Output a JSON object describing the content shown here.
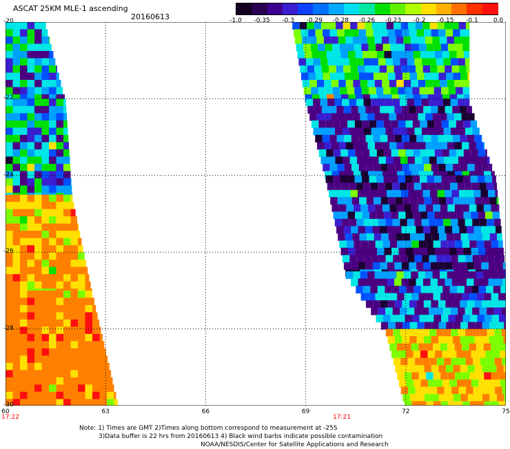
{
  "header": {
    "title": "ASCAT 25KM MLE-1 ascending",
    "date": "20160613"
  },
  "colorbar": {
    "labels": [
      "-1.0",
      "-0.35",
      "-0.3",
      "-0.29",
      "-0.28",
      "-0.26",
      "-0.23",
      "-0.2",
      "-0.15",
      "-0.1",
      "0.0"
    ],
    "colors": [
      "#1a0033",
      "#4b0082",
      "#3a1fd0",
      "#0050ff",
      "#00a0ff",
      "#00e5e5",
      "#00e000",
      "#7cff00",
      "#ffe000",
      "#ff8000",
      "#ff1010"
    ]
  },
  "axes": {
    "x_ticks": [
      "60",
      "63",
      "66",
      "69",
      "72",
      "75"
    ],
    "y_ticks": [
      "-20",
      "-22",
      "-24",
      "-26",
      "-28",
      "-30"
    ],
    "grid": "dotted"
  },
  "pass_times": [
    "17:22",
    "17:21"
  ],
  "notes": {
    "line1": "Note: 1) Times are GMT 2)Times along bottom correspond to measurement at -25S",
    "line2": "3)Data buffer is 22 hrs from 20160613 4) Black wind barbs indicate possible contamination",
    "line3": "NOAA/NESDIS/Center for Satellite Applications and Research"
  },
  "chart_data": {
    "type": "heatmap",
    "variable": "MLE-1",
    "xlim": [
      60,
      75
    ],
    "ylim": [
      -30,
      -20
    ],
    "swaths": [
      {
        "time": "17:22",
        "regions": [
          {
            "lat": [
              -20,
              -22
            ],
            "lon_west": 60.0,
            "lon_east": [
              61.2,
              61.8
            ],
            "dominant_value": -0.26
          },
          {
            "lat": [
              -22,
              -24.5
            ],
            "lon_west": 60.0,
            "lon_east": [
              61.8,
              62.0
            ],
            "dominant_value": -0.26
          },
          {
            "lat": [
              -24.5,
              -27
            ],
            "lon_west": 60.0,
            "lon_east": [
              62.0,
              62.6
            ],
            "dominant_value": -0.1
          },
          {
            "lat": [
              -27,
              -30
            ],
            "lon_west": 60.0,
            "lon_east": [
              62.6,
              63.4
            ],
            "dominant_value": -0.05
          }
        ]
      },
      {
        "time": "17:21",
        "regions": [
          {
            "lat": [
              -20,
              -22
            ],
            "lon_west": [
              68.6,
              69.0
            ],
            "lon_east": 73.9,
            "dominant_value": -0.24
          },
          {
            "lat": [
              -22,
              -24
            ],
            "lon_west": [
              69.0,
              69.6
            ],
            "lon_east": [
              73.9,
              74.7
            ],
            "dominant_value": -0.3
          },
          {
            "lat": [
              -24,
              -26.5
            ],
            "lon_west": [
              69.6,
              70.2
            ],
            "lon_east": [
              74.7,
              75.0
            ],
            "dominant_value": -0.31
          },
          {
            "lat": [
              -26.5,
              -28
            ],
            "lon_west": [
              70.2,
              71.4
            ],
            "lon_east": 75.0,
            "dominant_value": -0.29
          },
          {
            "lat": [
              -28,
              -30
            ],
            "lon_west": [
              71.4,
              72.0
            ],
            "lon_east": 75.0,
            "dominant_value": -0.12
          }
        ]
      }
    ]
  }
}
